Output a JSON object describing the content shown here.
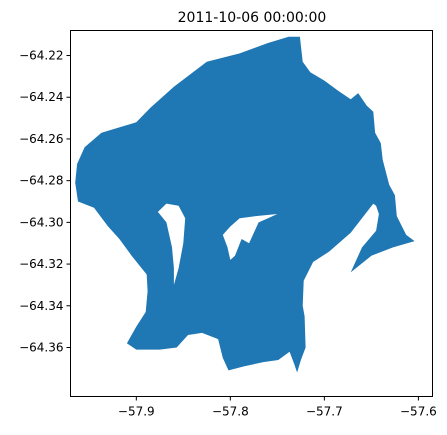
{
  "title": "2011-10-06 00:00:00",
  "fill_color": "#1f77b4",
  "axes": {
    "x": {
      "range": [
        -57.97,
        -57.585
      ],
      "ticks": [
        -57.9,
        -57.8,
        -57.7,
        -57.6
      ],
      "tick_labels": [
        "−57.9",
        "−57.8",
        "−57.7",
        "−57.6"
      ]
    },
    "y": {
      "range": [
        -64.3835,
        -64.208
      ],
      "ticks": [
        -64.22,
        -64.24,
        -64.26,
        -64.28,
        -64.3,
        -64.32,
        -64.34,
        -64.36
      ],
      "tick_labels": [
        "−64.22",
        "−64.24",
        "−64.26",
        "−64.28",
        "−64.30",
        "−64.32",
        "−64.34",
        "−64.36"
      ]
    },
    "grid": false
  },
  "polygon": {
    "outer": [
      [
        -57.965,
        -64.281
      ],
      [
        -57.963,
        -64.272
      ],
      [
        -57.955,
        -64.264
      ],
      [
        -57.937,
        -64.257
      ],
      [
        -57.9,
        -64.252
      ],
      [
        -57.885,
        -64.245
      ],
      [
        -57.86,
        -64.235
      ],
      [
        -57.825,
        -64.223
      ],
      [
        -57.79,
        -64.219
      ],
      [
        -57.76,
        -64.214
      ],
      [
        -57.738,
        -64.211
      ],
      [
        -57.726,
        -64.211
      ],
      [
        -57.723,
        -64.223
      ],
      [
        -57.715,
        -64.228
      ],
      [
        -57.7,
        -64.232
      ],
      [
        -57.685,
        -64.237
      ],
      [
        -57.672,
        -64.241
      ],
      [
        -57.664,
        -64.238
      ],
      [
        -57.655,
        -64.244
      ],
      [
        -57.648,
        -64.247
      ],
      [
        -57.646,
        -64.257
      ],
      [
        -57.64,
        -64.262
      ],
      [
        -57.638,
        -64.27
      ],
      [
        -57.631,
        -64.282
      ],
      [
        -57.625,
        -64.287
      ],
      [
        -57.623,
        -64.297
      ],
      [
        -57.613,
        -64.306
      ],
      [
        -57.604,
        -64.309
      ],
      [
        -57.627,
        -64.312
      ],
      [
        -57.65,
        -64.316
      ],
      [
        -57.672,
        -64.324
      ],
      [
        -57.66,
        -64.312
      ],
      [
        -57.645,
        -64.304
      ],
      [
        -57.642,
        -64.296
      ],
      [
        -57.645,
        -64.292
      ],
      [
        -57.648,
        -64.291
      ],
      [
        -57.672,
        -64.305
      ],
      [
        -57.695,
        -64.314
      ],
      [
        -57.712,
        -64.319
      ],
      [
        -57.722,
        -64.328
      ],
      [
        -57.723,
        -64.34
      ],
      [
        -57.721,
        -64.345
      ],
      [
        -57.72,
        -64.36
      ],
      [
        -57.725,
        -64.366
      ],
      [
        -57.729,
        -64.372
      ],
      [
        -57.732,
        -64.368
      ],
      [
        -57.737,
        -64.362
      ],
      [
        -57.749,
        -64.366
      ],
      [
        -57.765,
        -64.367
      ],
      [
        -57.785,
        -64.369
      ],
      [
        -57.802,
        -64.371
      ],
      [
        -57.808,
        -64.365
      ],
      [
        -57.813,
        -64.356
      ],
      [
        -57.83,
        -64.353
      ],
      [
        -57.845,
        -64.354
      ],
      [
        -57.857,
        -64.36
      ],
      [
        -57.875,
        -64.361
      ],
      [
        -57.9,
        -64.361
      ],
      [
        -57.91,
        -64.358
      ],
      [
        -57.9,
        -64.35
      ],
      [
        -57.89,
        -64.343
      ],
      [
        -57.888,
        -64.333
      ],
      [
        -57.889,
        -64.325
      ],
      [
        -57.905,
        -64.316
      ],
      [
        -57.918,
        -64.308
      ],
      [
        -57.93,
        -64.302
      ],
      [
        -57.945,
        -64.293
      ],
      [
        -57.962,
        -64.29
      ]
    ],
    "holes": [
      [
        [
          -57.877,
          -64.295
        ],
        [
          -57.868,
          -64.3
        ],
        [
          -57.862,
          -64.312
        ],
        [
          -57.86,
          -64.322
        ],
        [
          -57.86,
          -64.33
        ],
        [
          -57.855,
          -64.322
        ],
        [
          -57.85,
          -64.31
        ],
        [
          -57.848,
          -64.298
        ],
        [
          -57.855,
          -64.292
        ],
        [
          -57.868,
          -64.291
        ]
      ],
      [
        [
          -57.808,
          -64.306
        ],
        [
          -57.803,
          -64.312
        ],
        [
          -57.8,
          -64.318
        ],
        [
          -57.795,
          -64.316
        ],
        [
          -57.788,
          -64.308
        ],
        [
          -57.78,
          -64.31
        ],
        [
          -57.77,
          -64.3
        ],
        [
          -57.76,
          -64.298
        ],
        [
          -57.75,
          -64.296
        ],
        [
          -57.773,
          -64.297
        ],
        [
          -57.79,
          -64.298
        ],
        [
          -57.8,
          -64.302
        ]
      ]
    ]
  }
}
